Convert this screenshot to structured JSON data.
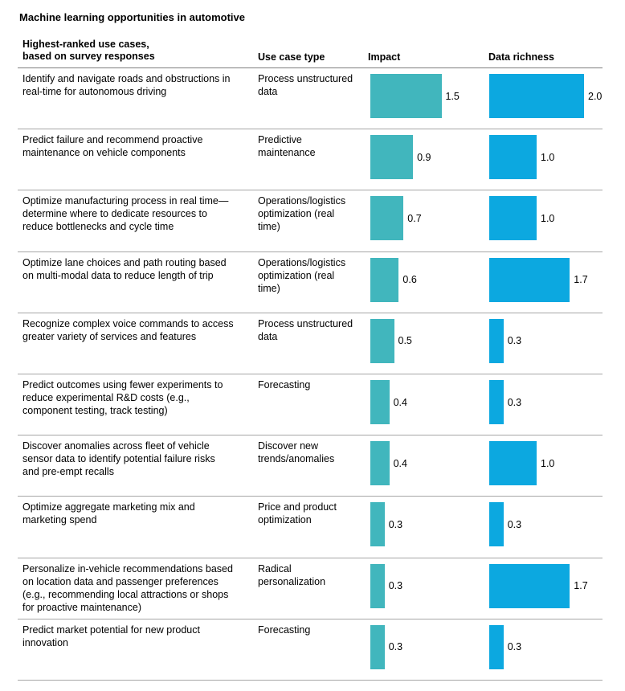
{
  "title": "Machine learning opportunities in automotive",
  "headers": {
    "use_case": "Highest-ranked use cases,\nbased on survey responses",
    "use_case_type": "Use case type",
    "impact": "Impact",
    "data_richness": "Data richness"
  },
  "colors": {
    "impact_bar": "#41b6bd",
    "data_bar": "#0ca8e0"
  },
  "chart_data": {
    "type": "bar",
    "title": "Machine learning opportunities in automotive",
    "categories": [
      "Identify and navigate roads and obstructions in real-time for autonomous driving",
      "Predict failure and recommend proactive maintenance on vehicle components",
      "Optimize manufacturing process in real time—determine where to dedicate resources to reduce bottlenecks and cycle time",
      "Optimize lane choices and path routing based on multi-modal data to reduce length of trip",
      "Recognize complex voice commands to access greater variety of services and features",
      "Predict outcomes using fewer experiments to reduce experimental R&D costs (e.g., component testing, track testing)",
      "Discover anomalies across fleet of vehicle sensor data to identify potential failure risks and pre-empt recalls",
      "Optimize aggregate marketing mix and marketing spend",
      "Personalize in-vehicle recommendations based on location data and passenger preferences (e.g., recommending local attractions or shops for proactive maintenance)",
      "Predict market potential for new product innovation"
    ],
    "series": [
      {
        "name": "Impact",
        "values": [
          1.5,
          0.9,
          0.7,
          0.6,
          0.5,
          0.4,
          0.4,
          0.3,
          0.3,
          0.3
        ]
      },
      {
        "name": "Data richness",
        "values": [
          2.0,
          1.0,
          1.0,
          1.7,
          0.3,
          0.3,
          1.0,
          0.3,
          1.7,
          0.3
        ]
      }
    ],
    "xlim": [
      0,
      2.0
    ],
    "grid": false,
    "legend": "none"
  },
  "rows": [
    {
      "use_case": "Identify and navigate roads and obstructions in\nreal-time for autonomous driving",
      "type": "Process unstructured\ndata",
      "impact": 1.5,
      "impact_label": "1.5",
      "data": 2.0,
      "data_label": "2.0"
    },
    {
      "use_case": "Predict failure and recommend proactive\nmaintenance on vehicle components",
      "type": "Predictive\nmaintenance",
      "impact": 0.9,
      "impact_label": "0.9",
      "data": 1.0,
      "data_label": "1.0"
    },
    {
      "use_case": "Optimize manufacturing process in real time—\ndetermine where to dedicate resources to\nreduce bottlenecks and cycle time",
      "type": "Operations/logistics\noptimization (real\ntime)",
      "impact": 0.7,
      "impact_label": "0.7",
      "data": 1.0,
      "data_label": "1.0"
    },
    {
      "use_case": "Optimize lane choices and path routing based\non multi-modal data to reduce length of trip",
      "type": "Operations/logistics\noptimization (real\ntime)",
      "impact": 0.6,
      "impact_label": "0.6",
      "data": 1.7,
      "data_label": "1.7"
    },
    {
      "use_case": "Recognize complex voice commands to access\ngreater variety of services and features",
      "type": "Process unstructured\ndata",
      "impact": 0.5,
      "impact_label": "0.5",
      "data": 0.3,
      "data_label": "0.3"
    },
    {
      "use_case": "Predict outcomes using fewer experiments to\nreduce experimental R&D costs (e.g.,\ncomponent testing, track testing)",
      "type": "Forecasting",
      "impact": 0.4,
      "impact_label": "0.4",
      "data": 0.3,
      "data_label": "0.3"
    },
    {
      "use_case": "Discover anomalies across fleet of vehicle\nsensor data to identify potential failure risks\nand pre-empt recalls",
      "type": "Discover new\ntrends/anomalies",
      "impact": 0.4,
      "impact_label": "0.4",
      "data": 1.0,
      "data_label": "1.0"
    },
    {
      "use_case": "Optimize aggregate marketing mix and\nmarketing spend",
      "type": "Price and product\noptimization",
      "impact": 0.3,
      "impact_label": "0.3",
      "data": 0.3,
      "data_label": "0.3"
    },
    {
      "use_case": "Personalize in-vehicle recommendations based\non location data and passenger preferences\n(e.g., recommending local attractions or shops\nfor proactive maintenance)",
      "type": "Radical\npersonalization",
      "impact": 0.3,
      "impact_label": "0.3",
      "data": 1.7,
      "data_label": "1.7"
    },
    {
      "use_case": "Predict market potential for new product\ninnovation",
      "type": "Forecasting",
      "impact": 0.3,
      "impact_label": "0.3",
      "data": 0.3,
      "data_label": "0.3"
    }
  ]
}
